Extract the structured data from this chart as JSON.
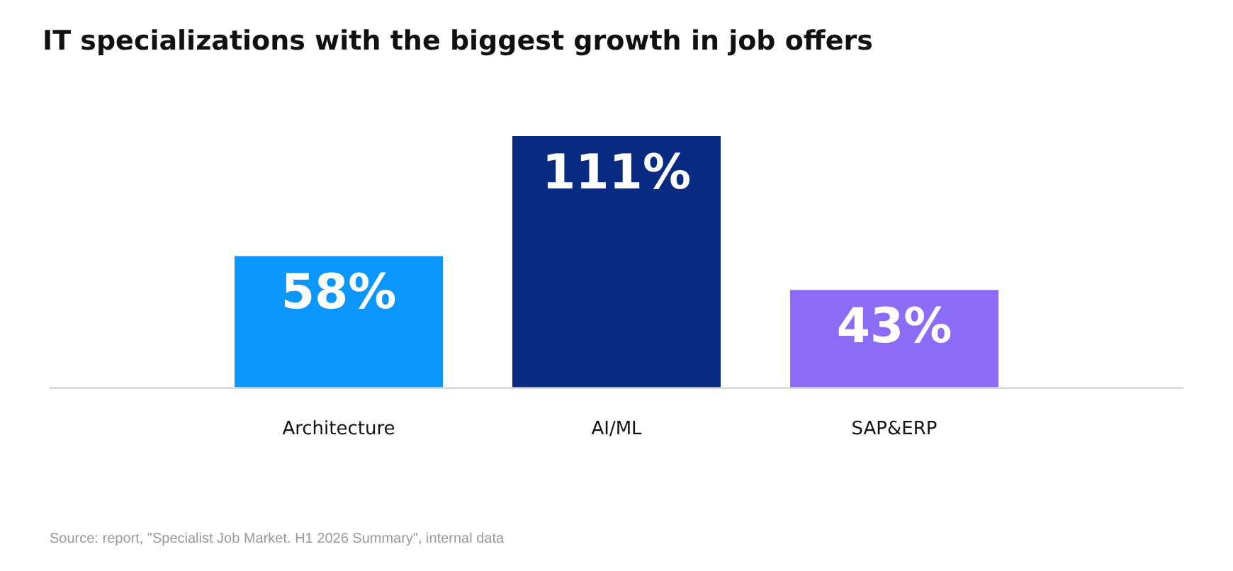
{
  "chart_data": {
    "type": "bar",
    "title": "IT specializations with the biggest growth in job offers",
    "categories": [
      "Architecture",
      "AI/ML",
      "SAP&ERP"
    ],
    "values": [
      58,
      111,
      43
    ],
    "colors": [
      "#0a96fa",
      "#082a80",
      "#8c6cf7"
    ],
    "value_labels": [
      "58%",
      "111%",
      "43%"
    ],
    "grid": false,
    "legend": false,
    "annotations": [
      "Source: report, \"Specialist Job Market. H1 2026 Summary\", internal data"
    ]
  }
}
